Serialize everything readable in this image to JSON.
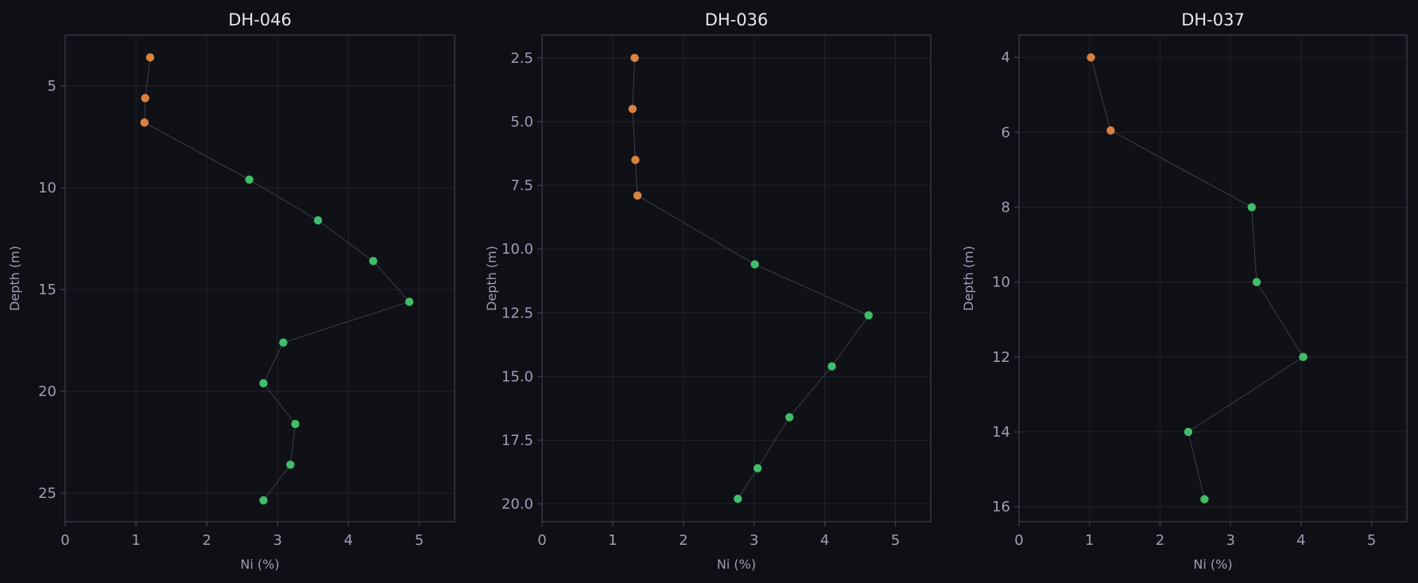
{
  "figure_background": "#0f1015",
  "colors": {
    "plot_background": "#101117",
    "frame": "#3a3c4a",
    "grid": "#20222b",
    "tick_text": "#9c9fb5",
    "title_text": "#e8e8ee",
    "connector_line": "#3c3e4a",
    "marker_orange": "#d9813e",
    "marker_green": "#3fbf6a"
  },
  "chart_data": [
    {
      "type": "scatter",
      "title": "DH-046",
      "xlabel": "Ni (%)",
      "ylabel": "Depth (m)",
      "xlim": [
        0,
        5.5
      ],
      "ylim": [
        26.4,
        2.5
      ],
      "y_inverted": true,
      "xticks": [
        0,
        1,
        2,
        3,
        4,
        5
      ],
      "xtick_labels": [
        "0",
        "1",
        "2",
        "3",
        "4",
        "5"
      ],
      "yticks": [
        5,
        10,
        15,
        20,
        25
      ],
      "ytick_labels": [
        "5",
        "10",
        "15",
        "20",
        "25"
      ],
      "grid": true,
      "connect_points": true,
      "points": [
        {
          "x": 1.2,
          "y": 3.6,
          "color": "orange"
        },
        {
          "x": 1.13,
          "y": 5.6,
          "color": "orange"
        },
        {
          "x": 1.12,
          "y": 6.8,
          "color": "orange"
        },
        {
          "x": 2.6,
          "y": 9.6,
          "color": "green"
        },
        {
          "x": 3.57,
          "y": 11.6,
          "color": "green"
        },
        {
          "x": 4.35,
          "y": 13.6,
          "color": "green"
        },
        {
          "x": 4.86,
          "y": 15.6,
          "color": "green"
        },
        {
          "x": 3.08,
          "y": 17.6,
          "color": "green"
        },
        {
          "x": 2.8,
          "y": 19.6,
          "color": "green"
        },
        {
          "x": 3.25,
          "y": 21.6,
          "color": "green"
        },
        {
          "x": 3.18,
          "y": 23.6,
          "color": "green"
        },
        {
          "x": 2.8,
          "y": 25.35,
          "color": "green"
        }
      ]
    },
    {
      "type": "scatter",
      "title": "DH-036",
      "xlabel": "Ni (%)",
      "ylabel": "Depth (m)",
      "xlim": [
        0,
        5.5
      ],
      "ylim": [
        20.7,
        1.6
      ],
      "y_inverted": true,
      "xticks": [
        0,
        1,
        2,
        3,
        4,
        5
      ],
      "xtick_labels": [
        "0",
        "1",
        "2",
        "3",
        "4",
        "5"
      ],
      "yticks": [
        2.5,
        5.0,
        7.5,
        10.0,
        12.5,
        15.0,
        17.5,
        20.0
      ],
      "ytick_labels": [
        "2.5",
        "5.0",
        "7.5",
        "10.0",
        "12.5",
        "15.0",
        "17.5",
        "20.0"
      ],
      "grid": true,
      "connect_points": true,
      "points": [
        {
          "x": 1.31,
          "y": 2.5,
          "color": "orange"
        },
        {
          "x": 1.28,
          "y": 4.5,
          "color": "orange"
        },
        {
          "x": 1.32,
          "y": 6.5,
          "color": "orange"
        },
        {
          "x": 1.35,
          "y": 7.9,
          "color": "orange"
        },
        {
          "x": 3.01,
          "y": 10.6,
          "color": "green"
        },
        {
          "x": 4.62,
          "y": 12.6,
          "color": "green"
        },
        {
          "x": 4.1,
          "y": 14.6,
          "color": "green"
        },
        {
          "x": 3.5,
          "y": 16.6,
          "color": "green"
        },
        {
          "x": 3.05,
          "y": 18.6,
          "color": "green"
        },
        {
          "x": 2.77,
          "y": 19.8,
          "color": "green"
        }
      ]
    },
    {
      "type": "scatter",
      "title": "DH-037",
      "xlabel": "Ni (%)",
      "ylabel": "Depth (m)",
      "xlim": [
        0,
        5.5
      ],
      "ylim": [
        16.4,
        3.4
      ],
      "y_inverted": true,
      "xticks": [
        0,
        1,
        2,
        3,
        4,
        5
      ],
      "xtick_labels": [
        "0",
        "1",
        "2",
        "3",
        "4",
        "5"
      ],
      "yticks": [
        4,
        6,
        8,
        10,
        12,
        14,
        16
      ],
      "ytick_labels": [
        "4",
        "6",
        "8",
        "10",
        "12",
        "14",
        "16"
      ],
      "grid": true,
      "connect_points": true,
      "points": [
        {
          "x": 1.02,
          "y": 4.0,
          "color": "orange"
        },
        {
          "x": 1.3,
          "y": 5.95,
          "color": "orange"
        },
        {
          "x": 3.3,
          "y": 8.0,
          "color": "green"
        },
        {
          "x": 3.37,
          "y": 10.0,
          "color": "green"
        },
        {
          "x": 4.03,
          "y": 12.0,
          "color": "green"
        },
        {
          "x": 2.4,
          "y": 14.0,
          "color": "green"
        },
        {
          "x": 2.63,
          "y": 15.8,
          "color": "green"
        }
      ]
    }
  ]
}
